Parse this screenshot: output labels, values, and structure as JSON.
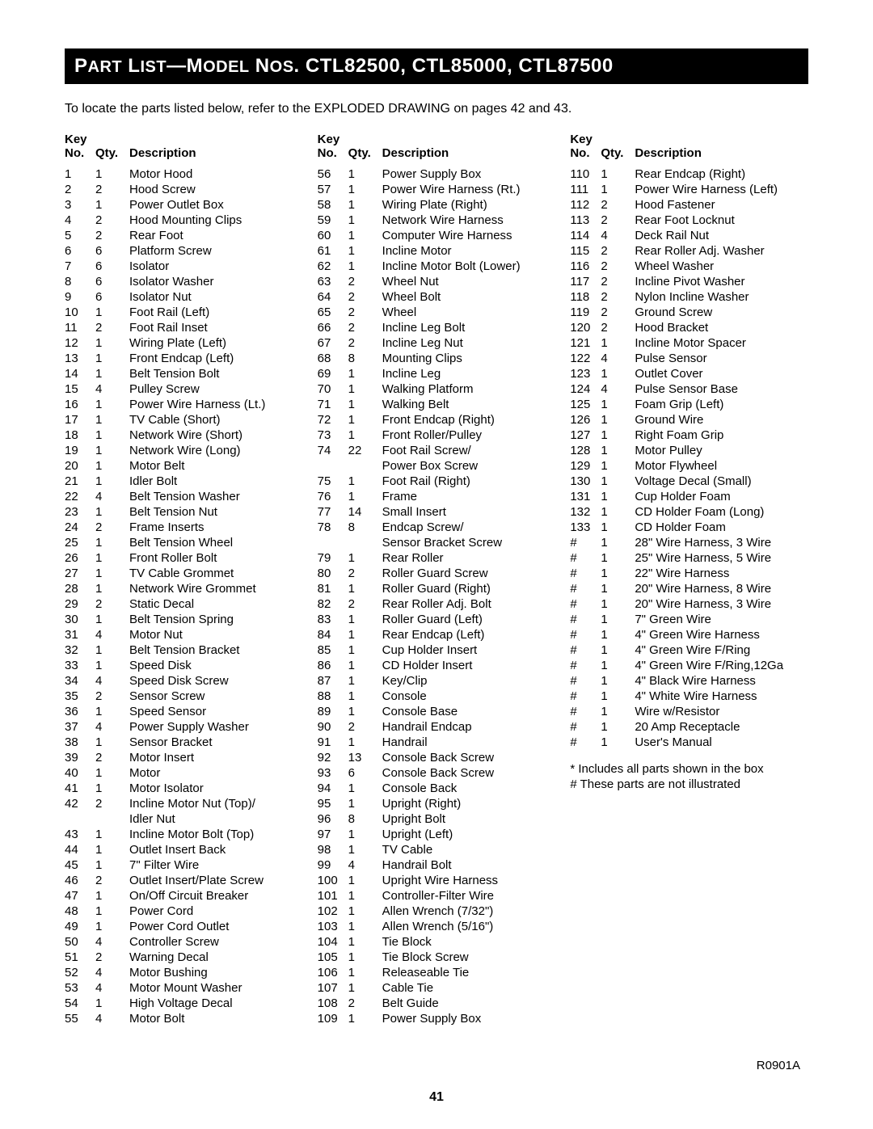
{
  "title_prefix": "P",
  "title_rest1": "ART",
  "title_space": " L",
  "title_rest2": "IST",
  "title_dash": "—M",
  "title_rest3": "ODEL",
  "title_space2": " N",
  "title_rest4": "OS",
  "title_models": ". CTL82500, CTL85000, CTL87500",
  "intro": "To locate the parts listed below, refer to the EXPLODED DRAWING on pages 42 and 43.",
  "header": {
    "key": "Key",
    "no": "No.",
    "qty": "Qty.",
    "desc": "Description"
  },
  "col1": [
    {
      "no": "1",
      "qty": "1",
      "desc": "Motor Hood"
    },
    {
      "no": "2",
      "qty": "2",
      "desc": "Hood Screw"
    },
    {
      "no": "3",
      "qty": "1",
      "desc": "Power Outlet Box"
    },
    {
      "no": "4",
      "qty": "2",
      "desc": "Hood Mounting Clips"
    },
    {
      "no": "5",
      "qty": "2",
      "desc": "Rear Foot"
    },
    {
      "no": "6",
      "qty": "6",
      "desc": "Platform Screw"
    },
    {
      "no": "7",
      "qty": "6",
      "desc": "Isolator"
    },
    {
      "no": "8",
      "qty": "6",
      "desc": "Isolator Washer"
    },
    {
      "no": "9",
      "qty": "6",
      "desc": "Isolator Nut"
    },
    {
      "no": "10",
      "qty": "1",
      "desc": "Foot Rail (Left)"
    },
    {
      "no": "11",
      "qty": "2",
      "desc": "Foot Rail Inset"
    },
    {
      "no": "12",
      "qty": "1",
      "desc": "Wiring Plate (Left)"
    },
    {
      "no": "13",
      "qty": "1",
      "desc": "Front Endcap (Left)"
    },
    {
      "no": "14",
      "qty": "1",
      "desc": "Belt Tension Bolt"
    },
    {
      "no": "15",
      "qty": "4",
      "desc": "Pulley Screw"
    },
    {
      "no": "16",
      "qty": "1",
      "desc": "Power Wire Harness (Lt.)"
    },
    {
      "no": "17",
      "qty": "1",
      "desc": "TV Cable (Short)"
    },
    {
      "no": "18",
      "qty": "1",
      "desc": "Network Wire (Short)"
    },
    {
      "no": "19",
      "qty": "1",
      "desc": "Network Wire (Long)"
    },
    {
      "no": "20",
      "qty": "1",
      "desc": "Motor Belt"
    },
    {
      "no": "21",
      "qty": "1",
      "desc": "Idler Bolt"
    },
    {
      "no": "22",
      "qty": "4",
      "desc": "Belt Tension Washer"
    },
    {
      "no": "23",
      "qty": "1",
      "desc": "Belt Tension Nut"
    },
    {
      "no": "24",
      "qty": "2",
      "desc": "Frame Inserts"
    },
    {
      "no": "25",
      "qty": "1",
      "desc": "Belt Tension Wheel"
    },
    {
      "no": "26",
      "qty": "1",
      "desc": "Front Roller Bolt"
    },
    {
      "no": "27",
      "qty": "1",
      "desc": "TV Cable Grommet"
    },
    {
      "no": "28",
      "qty": "1",
      "desc": "Network Wire Grommet"
    },
    {
      "no": "29",
      "qty": "2",
      "desc": "Static Decal"
    },
    {
      "no": "30",
      "qty": "1",
      "desc": "Belt Tension Spring"
    },
    {
      "no": "31",
      "qty": "4",
      "desc": "Motor Nut"
    },
    {
      "no": "32",
      "qty": "1",
      "desc": "Belt Tension Bracket"
    },
    {
      "no": "33",
      "qty": "1",
      "desc": "Speed Disk"
    },
    {
      "no": "34",
      "qty": "4",
      "desc": "Speed Disk Screw"
    },
    {
      "no": "35",
      "qty": "2",
      "desc": "Sensor Screw"
    },
    {
      "no": "36",
      "qty": "1",
      "desc": "Speed Sensor"
    },
    {
      "no": "37",
      "qty": "4",
      "desc": "Power Supply Washer"
    },
    {
      "no": "38",
      "qty": "1",
      "desc": "Sensor Bracket"
    },
    {
      "no": "39",
      "qty": "2",
      "desc": "Motor Insert"
    },
    {
      "no": "40",
      "qty": "1",
      "desc": "Motor"
    },
    {
      "no": "41",
      "qty": "1",
      "desc": "Motor Isolator"
    },
    {
      "no": "42",
      "qty": "2",
      "desc": "Incline Motor Nut (Top)/"
    },
    {
      "no": "",
      "qty": "",
      "desc": "Idler Nut"
    },
    {
      "no": "43",
      "qty": "1",
      "desc": "Incline Motor Bolt (Top)"
    },
    {
      "no": "44",
      "qty": "1",
      "desc": "Outlet Insert Back"
    },
    {
      "no": "45",
      "qty": "1",
      "desc": "7\" Filter Wire"
    },
    {
      "no": "46",
      "qty": "2",
      "desc": "Outlet Insert/Plate Screw"
    },
    {
      "no": "47",
      "qty": "1",
      "desc": "On/Off Circuit Breaker"
    },
    {
      "no": "48",
      "qty": "1",
      "desc": "Power Cord"
    },
    {
      "no": "49",
      "qty": "1",
      "desc": "Power Cord Outlet"
    },
    {
      "no": "50",
      "qty": "4",
      "desc": "Controller Screw"
    },
    {
      "no": "51",
      "qty": "2",
      "desc": "Warning Decal"
    },
    {
      "no": "52",
      "qty": "4",
      "desc": "Motor Bushing"
    },
    {
      "no": "53",
      "qty": "4",
      "desc": "Motor Mount Washer"
    },
    {
      "no": "54",
      "qty": "1",
      "desc": "High Voltage Decal"
    },
    {
      "no": "55",
      "qty": "4",
      "desc": "Motor Bolt"
    }
  ],
  "col2": [
    {
      "no": "56",
      "qty": "1",
      "desc": "Power Supply Box"
    },
    {
      "no": "57",
      "qty": "1",
      "desc": "Power Wire Harness (Rt.)"
    },
    {
      "no": "58",
      "qty": "1",
      "desc": "Wiring Plate (Right)"
    },
    {
      "no": "59",
      "qty": "1",
      "desc": "Network Wire Harness"
    },
    {
      "no": "60",
      "qty": "1",
      "desc": "Computer Wire Harness"
    },
    {
      "no": "61",
      "qty": "1",
      "desc": "Incline Motor"
    },
    {
      "no": "62",
      "qty": "1",
      "desc": "Incline Motor Bolt (Lower)"
    },
    {
      "no": "63",
      "qty": "2",
      "desc": "Wheel Nut"
    },
    {
      "no": "64",
      "qty": "2",
      "desc": "Wheel Bolt"
    },
    {
      "no": "65",
      "qty": "2",
      "desc": "Wheel"
    },
    {
      "no": "66",
      "qty": "2",
      "desc": "Incline Leg Bolt"
    },
    {
      "no": "67",
      "qty": "2",
      "desc": "Incline Leg Nut"
    },
    {
      "no": "68",
      "qty": "8",
      "desc": "Mounting Clips"
    },
    {
      "no": "69",
      "qty": "1",
      "desc": "Incline Leg"
    },
    {
      "no": "70",
      "qty": "1",
      "desc": "Walking Platform"
    },
    {
      "no": "71",
      "qty": "1",
      "desc": "Walking Belt"
    },
    {
      "no": "72",
      "qty": "1",
      "desc": "Front Endcap (Right)"
    },
    {
      "no": "73",
      "qty": "1",
      "desc": "Front Roller/Pulley"
    },
    {
      "no": "74",
      "qty": "22",
      "desc": "Foot Rail Screw/"
    },
    {
      "no": "",
      "qty": "",
      "desc": "Power Box Screw"
    },
    {
      "no": "75",
      "qty": "1",
      "desc": "Foot Rail (Right)"
    },
    {
      "no": "76",
      "qty": "1",
      "desc": "Frame"
    },
    {
      "no": "77",
      "qty": "14",
      "desc": "Small Insert"
    },
    {
      "no": "78",
      "qty": "8",
      "desc": "Endcap Screw/"
    },
    {
      "no": "",
      "qty": "",
      "desc": "Sensor Bracket Screw"
    },
    {
      "no": "79",
      "qty": "1",
      "desc": "Rear Roller"
    },
    {
      "no": "80",
      "qty": "2",
      "desc": "Roller Guard Screw"
    },
    {
      "no": "81",
      "qty": "1",
      "desc": "Roller Guard (Right)"
    },
    {
      "no": "82",
      "qty": "2",
      "desc": "Rear Roller Adj. Bolt"
    },
    {
      "no": "83",
      "qty": "1",
      "desc": "Roller Guard (Left)"
    },
    {
      "no": "84",
      "qty": "1",
      "desc": "Rear Endcap (Left)"
    },
    {
      "no": "85",
      "qty": "1",
      "desc": "Cup Holder Insert"
    },
    {
      "no": "86",
      "qty": "1",
      "desc": "CD Holder Insert"
    },
    {
      "no": "87",
      "qty": "1",
      "desc": "Key/Clip"
    },
    {
      "no": "88",
      "qty": "1",
      "desc": "Console"
    },
    {
      "no": "89",
      "qty": "1",
      "desc": "Console Base"
    },
    {
      "no": "90",
      "qty": "2",
      "desc": "Handrail Endcap"
    },
    {
      "no": "91",
      "qty": "1",
      "desc": "Handrail"
    },
    {
      "no": "92",
      "qty": "13",
      "desc": "Console Back Screw"
    },
    {
      "no": "93",
      "qty": "6",
      "desc": "Console Back Screw"
    },
    {
      "no": "94",
      "qty": "1",
      "desc": "Console Back"
    },
    {
      "no": "95",
      "qty": "1",
      "desc": "Upright (Right)"
    },
    {
      "no": "96",
      "qty": "8",
      "desc": "Upright Bolt"
    },
    {
      "no": "97",
      "qty": "1",
      "desc": "Upright (Left)"
    },
    {
      "no": "98",
      "qty": "1",
      "desc": "TV Cable"
    },
    {
      "no": "99",
      "qty": "4",
      "desc": "Handrail Bolt"
    },
    {
      "no": "100",
      "qty": "1",
      "desc": "Upright Wire Harness"
    },
    {
      "no": "101",
      "qty": "1",
      "desc": "Controller-Filter Wire"
    },
    {
      "no": "102",
      "qty": "1",
      "desc": "Allen Wrench (7/32\")"
    },
    {
      "no": "103",
      "qty": "1",
      "desc": "Allen Wrench (5/16\")"
    },
    {
      "no": "104",
      "qty": "1",
      "desc": "Tie Block"
    },
    {
      "no": "105",
      "qty": "1",
      "desc": "Tie Block Screw"
    },
    {
      "no": "106",
      "qty": "1",
      "desc": "Releaseable Tie"
    },
    {
      "no": "107",
      "qty": "1",
      "desc": "Cable Tie"
    },
    {
      "no": "108",
      "qty": "2",
      "desc": "Belt Guide"
    },
    {
      "no": "109",
      "qty": "1",
      "desc": "Power Supply Box"
    }
  ],
  "col3": [
    {
      "no": "110",
      "qty": "1",
      "desc": "Rear Endcap (Right)"
    },
    {
      "no": "111",
      "qty": "1",
      "desc": "Power Wire Harness (Left)"
    },
    {
      "no": "112",
      "qty": "2",
      "desc": "Hood Fastener"
    },
    {
      "no": "113",
      "qty": "2",
      "desc": "Rear Foot Locknut"
    },
    {
      "no": "114",
      "qty": "4",
      "desc": "Deck Rail Nut"
    },
    {
      "no": "115",
      "qty": "2",
      "desc": "Rear Roller Adj. Washer"
    },
    {
      "no": "116",
      "qty": "2",
      "desc": "Wheel Washer"
    },
    {
      "no": "117",
      "qty": "2",
      "desc": "Incline Pivot Washer"
    },
    {
      "no": "118",
      "qty": "2",
      "desc": "Nylon Incline Washer"
    },
    {
      "no": "119",
      "qty": "2",
      "desc": "Ground Screw"
    },
    {
      "no": "120",
      "qty": "2",
      "desc": "Hood Bracket"
    },
    {
      "no": "121",
      "qty": "1",
      "desc": "Incline Motor Spacer"
    },
    {
      "no": "122",
      "qty": "4",
      "desc": "Pulse Sensor"
    },
    {
      "no": "123",
      "qty": "1",
      "desc": "Outlet Cover"
    },
    {
      "no": "124",
      "qty": "4",
      "desc": "Pulse Sensor Base"
    },
    {
      "no": "125",
      "qty": "1",
      "desc": "Foam Grip (Left)"
    },
    {
      "no": "126",
      "qty": "1",
      "desc": "Ground Wire"
    },
    {
      "no": "127",
      "qty": "1",
      "desc": "Right Foam Grip"
    },
    {
      "no": "128",
      "qty": "1",
      "desc": "Motor Pulley"
    },
    {
      "no": "129",
      "qty": "1",
      "desc": "Motor Flywheel"
    },
    {
      "no": "130",
      "qty": "1",
      "desc": "Voltage Decal (Small)"
    },
    {
      "no": "131",
      "qty": "1",
      "desc": "Cup Holder Foam"
    },
    {
      "no": "132",
      "qty": "1",
      "desc": "CD Holder Foam (Long)"
    },
    {
      "no": "133",
      "qty": "1",
      "desc": "CD Holder Foam"
    },
    {
      "no": "#",
      "qty": "1",
      "desc": "28\" Wire Harness, 3 Wire"
    },
    {
      "no": "#",
      "qty": "1",
      "desc": "25\" Wire Harness, 5 Wire"
    },
    {
      "no": "#",
      "qty": "1",
      "desc": "22\" Wire Harness"
    },
    {
      "no": "#",
      "qty": "1",
      "desc": "20\" Wire Harness, 8 Wire"
    },
    {
      "no": "#",
      "qty": "1",
      "desc": "20\" Wire Harness, 3 Wire"
    },
    {
      "no": "#",
      "qty": "1",
      "desc": "7\" Green Wire"
    },
    {
      "no": "#",
      "qty": "1",
      "desc": "4\" Green Wire Harness"
    },
    {
      "no": "#",
      "qty": "1",
      "desc": "4\" Green Wire F/Ring"
    },
    {
      "no": "#",
      "qty": "1",
      "desc": "4\" Green Wire F/Ring,12Ga"
    },
    {
      "no": "#",
      "qty": "1",
      "desc": "4\" Black Wire Harness"
    },
    {
      "no": "#",
      "qty": "1",
      "desc": "4\" White Wire Harness"
    },
    {
      "no": "#",
      "qty": "1",
      "desc": "Wire w/Resistor"
    },
    {
      "no": "#",
      "qty": "1",
      "desc": "20 Amp Receptacle"
    },
    {
      "no": "#",
      "qty": "1",
      "desc": "User's Manual"
    }
  ],
  "notes": {
    "line1": "* Includes all parts shown in the box",
    "line2": "# These parts are not illustrated"
  },
  "footer_code": "R0901A",
  "page_number": "41"
}
